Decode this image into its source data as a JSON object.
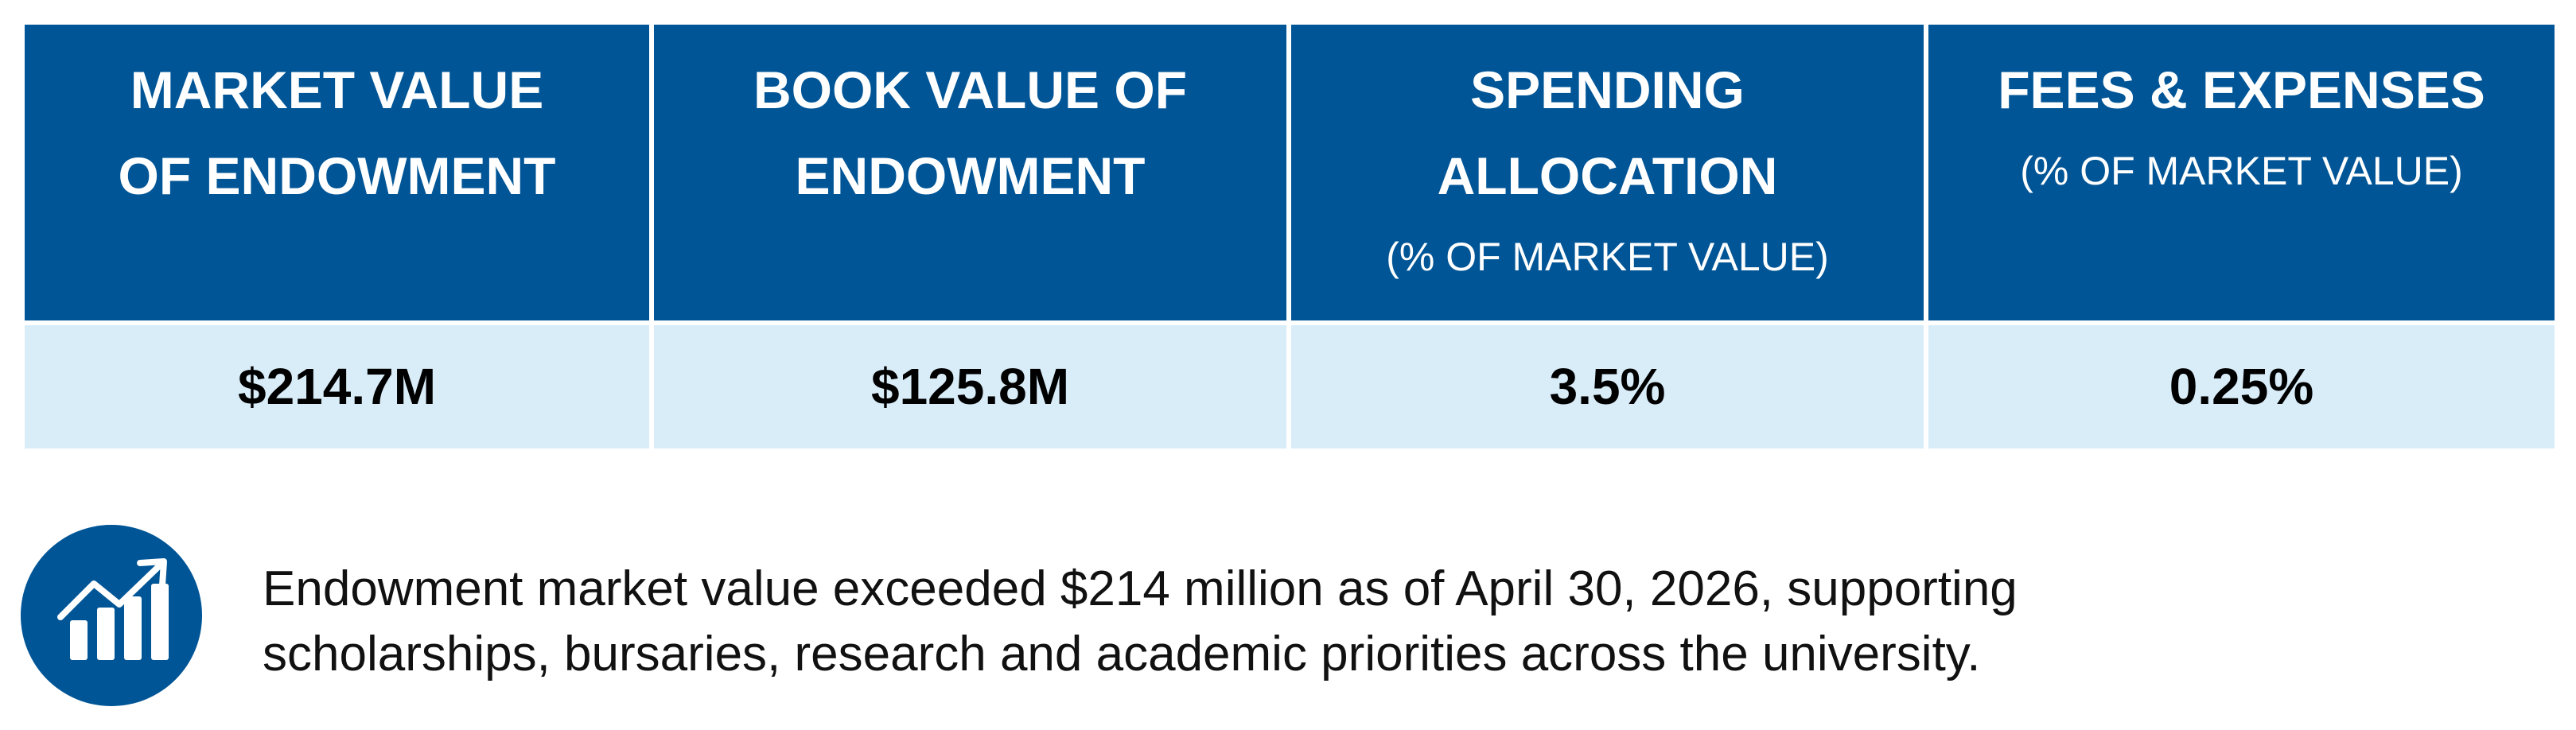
{
  "table": {
    "headers": [
      {
        "title": [
          "MARKET VALUE",
          "OF ENDOWMENT"
        ]
      },
      {
        "title": [
          "BOOK VALUE OF",
          "ENDOWMENT"
        ]
      },
      {
        "title": [
          "SPENDING",
          "ALLOCATION"
        ],
        "subtitle": "(% OF MARKET VALUE)"
      },
      {
        "title": [
          "FEES & EXPENSES"
        ],
        "subtitle": "(% OF MARKET VALUE)"
      }
    ],
    "rows": [
      [
        "$214.7M",
        "$125.8M",
        "3.5%",
        "0.25%"
      ]
    ]
  },
  "note": [
    "Endowment market value exceeded $214 million as of April 30, 2026, supporting",
    "scholarships, bursaries, research and academic priorities across the university."
  ]
}
